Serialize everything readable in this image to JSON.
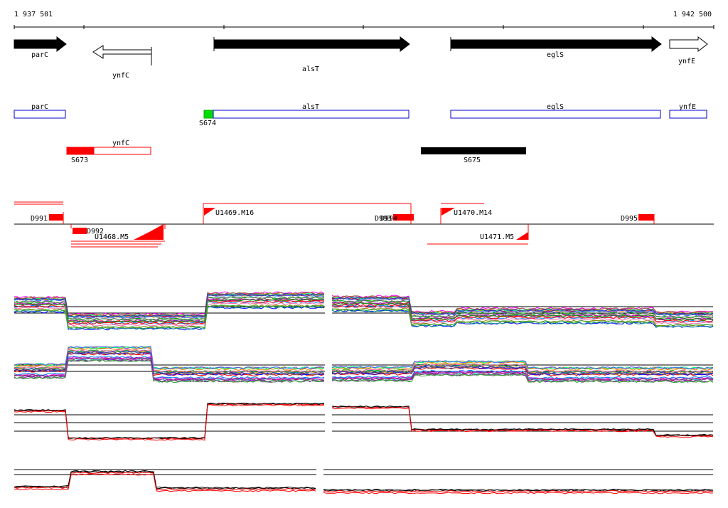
{
  "axis": {
    "start_label": "1 937 501",
    "end_label": "1 942 500"
  },
  "genes": [
    {
      "name": "parC",
      "strand": "+",
      "filled": true
    },
    {
      "name": "ynfC",
      "strand": "-",
      "filled": false
    },
    {
      "name": "alsT",
      "strand": "+",
      "filled": true
    },
    {
      "name": "eglS",
      "strand": "+",
      "filled": true
    },
    {
      "name": "ynfE",
      "strand": "+",
      "filled": false
    }
  ],
  "annotation_boxes": [
    {
      "name": "parC"
    },
    {
      "name": "alsT"
    },
    {
      "name": "eglS"
    },
    {
      "name": "ynfE"
    },
    {
      "name": "ynfC"
    }
  ],
  "segments": [
    "S674",
    "S673",
    "S675"
  ],
  "transcripts": [
    "D991",
    "D992",
    "D993",
    "D994",
    "D995",
    "U1468.M5",
    "U1469.M16",
    "U1470.M14",
    "U1471.M5"
  ],
  "colors": {
    "gene_fill": "#000000",
    "box_stroke": "#0000cc",
    "segment_red": "#ff0000",
    "segment_green": "#00dd00",
    "transcript": "#ff0000",
    "profile_black": "#000000",
    "profile_red": "#ff0000"
  },
  "expression_panels": [
    {
      "style": "multi",
      "level_profile": "high-low-high-mid"
    },
    {
      "style": "multi",
      "level_profile": "low-high-low-low"
    },
    {
      "style": "pair",
      "level_profile": "high-low-high-low"
    },
    {
      "style": "pair",
      "level_profile": "low-high-low-low"
    }
  ]
}
